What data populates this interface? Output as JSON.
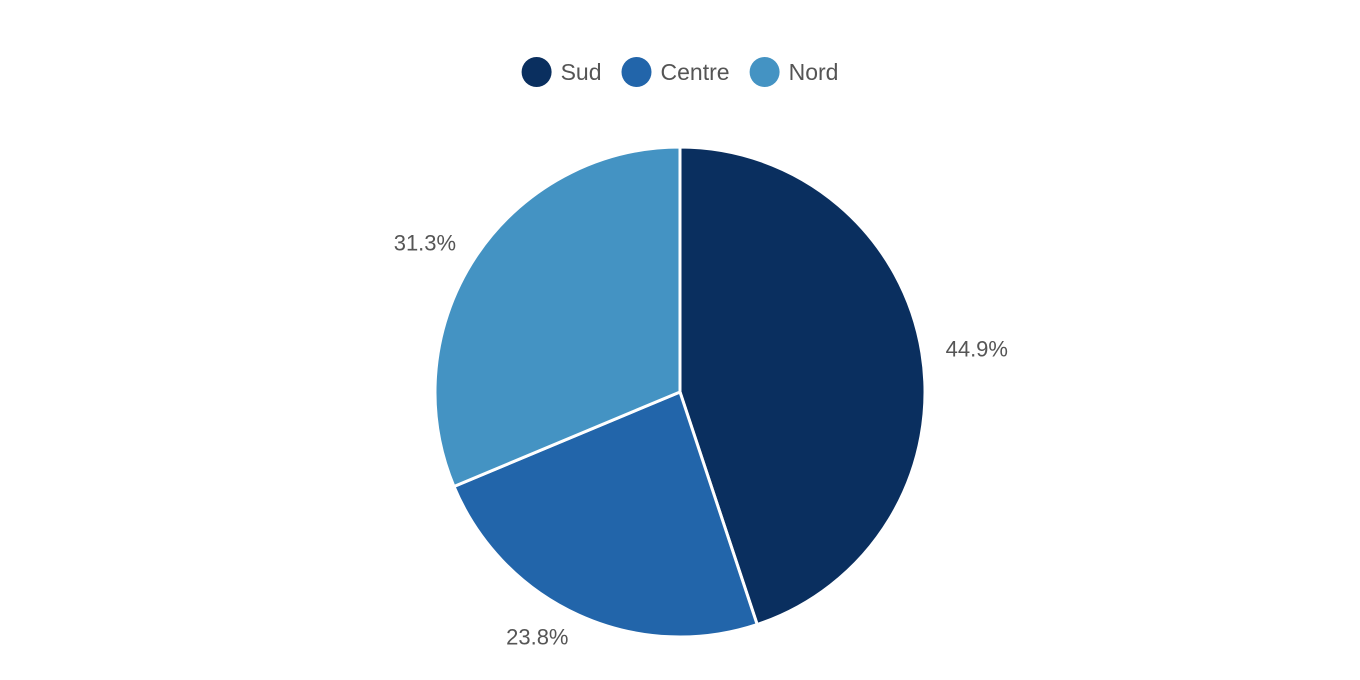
{
  "chart_data": {
    "type": "pie",
    "categories": [
      "Sud",
      "Centre",
      "Nord"
    ],
    "values": [
      44.9,
      23.8,
      31.3
    ],
    "data_labels": [
      "44.9%",
      "23.8%",
      "31.3%"
    ],
    "colors": [
      "#0a2f5f",
      "#2265aa",
      "#4493c3"
    ],
    "legend": {
      "position": "top-center",
      "entries": [
        "Sud",
        "Centre",
        "Nord"
      ]
    },
    "start_angle": "12 o'clock",
    "direction": "clockwise",
    "title": ""
  }
}
